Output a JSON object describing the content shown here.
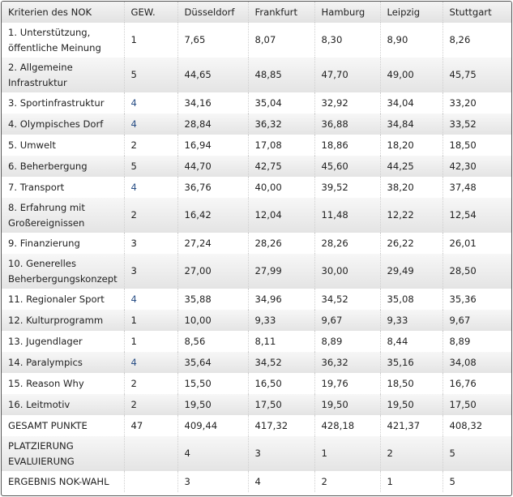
{
  "headers": [
    "Kriterien des NOK",
    "GEW.",
    "Düsseldorf",
    "Frankfurt",
    "Hamburg",
    "Leipzig",
    "Stuttgart"
  ],
  "rows": [
    [
      "1. Unterstützung, öffentliche Meinung",
      "1",
      "7,65",
      "8,07",
      "8,30",
      "8,90",
      "8,26"
    ],
    [
      "2. Allgemeine Infrastruktur",
      "5",
      "44,65",
      "48,85",
      "47,70",
      "49,00",
      "45,75"
    ],
    [
      "3. Sportinfrastruktur",
      "4",
      "34,16",
      "35,04",
      "32,92",
      "34,04",
      "33,20"
    ],
    [
      "4. Olympisches Dorf",
      "4",
      "28,84",
      "36,32",
      "36,88",
      "34,84",
      "33,52"
    ],
    [
      "5. Umwelt",
      "2",
      "16,94",
      "17,08",
      "18,86",
      "18,20",
      "18,50"
    ],
    [
      "6. Beherbergung",
      "5",
      "44,70",
      "42,75",
      "45,60",
      "44,25",
      "42,30"
    ],
    [
      "7. Transport",
      "4",
      "36,76",
      "40,00",
      "39,52",
      "38,20",
      "37,48"
    ],
    [
      "8. Erfahrung mit Großereignissen",
      "2",
      "16,42",
      "12,04",
      "11,48",
      "12,22",
      "12,54"
    ],
    [
      "9. Finanzierung",
      "3",
      "27,24",
      "28,26",
      "28,26",
      "26,22",
      "26,01"
    ],
    [
      "10. Generelles Beherbergungskonzept",
      "3",
      "27,00",
      "27,99",
      "30,00",
      "29,49",
      "28,50"
    ],
    [
      "11. Regionaler Sport",
      "4",
      "35,88",
      "34,96",
      "34,52",
      "35,08",
      "35,36"
    ],
    [
      "12. Kulturprogramm",
      "1",
      "10,00",
      "9,33",
      "9,67",
      "9,33",
      "9,67"
    ],
    [
      "13. Jugendlager",
      "1",
      "8,56",
      "8,11",
      "8,89",
      "8,44",
      "8,89"
    ],
    [
      "14. Paralympics",
      "4",
      "35,64",
      "34,52",
      "36,32",
      "35,16",
      "34,08"
    ],
    [
      "15. Reason Why",
      "2",
      "15,50",
      "16,50",
      "19,76",
      "18,50",
      "16,76"
    ],
    [
      "16. Leitmotiv",
      "2",
      "19,50",
      "17,50",
      "19,50",
      "19,50",
      "17,50"
    ],
    [
      "GESAMT PUNKTE",
      "47",
      "409,44",
      "417,32",
      "428,18",
      "421,37",
      "408,32"
    ],
    [
      "PLATZIERUNG EVALUIERUNG",
      "",
      "4",
      "3",
      "1",
      "2",
      "5"
    ],
    [
      "ERGEBNIS NOK-WAHL",
      "",
      "3",
      "4",
      "2",
      "1",
      "5"
    ]
  ],
  "colors": {
    "weight_highlight": "#2a4f86"
  }
}
